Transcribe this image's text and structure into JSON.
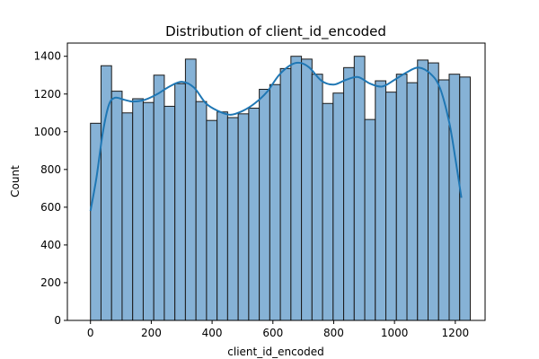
{
  "chart_data": {
    "type": "bar",
    "title": "Distribution of client_id_encoded",
    "xlabel": "client_id_encoded",
    "ylabel": "Count",
    "xlim": [
      -76,
      1298
    ],
    "ylim": [
      0,
      1470
    ],
    "xticks": [
      0,
      200,
      400,
      600,
      800,
      1000,
      1200
    ],
    "yticks": [
      0,
      200,
      400,
      600,
      800,
      1000,
      1200,
      1400
    ],
    "bin_start": 0,
    "bin_width": 34.7,
    "counts": [
      1045,
      1350,
      1215,
      1100,
      1175,
      1155,
      1300,
      1135,
      1255,
      1385,
      1160,
      1060,
      1105,
      1075,
      1095,
      1125,
      1225,
      1250,
      1335,
      1400,
      1385,
      1305,
      1150,
      1205,
      1340,
      1400,
      1065,
      1270,
      1210,
      1305,
      1260,
      1380,
      1365,
      1275,
      1305,
      1290
    ],
    "kde": {
      "x": [
        0,
        20,
        40,
        60,
        80,
        110,
        140,
        180,
        220,
        260,
        300,
        340,
        380,
        420,
        460,
        500,
        540,
        580,
        620,
        660,
        690,
        720,
        760,
        800,
        840,
        880,
        920,
        960,
        1000,
        1040,
        1080,
        1120,
        1150,
        1180,
        1200,
        1220
      ],
      "y": [
        580,
        760,
        990,
        1140,
        1180,
        1170,
        1160,
        1170,
        1200,
        1240,
        1265,
        1235,
        1150,
        1110,
        1090,
        1110,
        1150,
        1210,
        1300,
        1355,
        1365,
        1340,
        1270,
        1250,
        1275,
        1290,
        1255,
        1240,
        1275,
        1315,
        1340,
        1305,
        1230,
        1050,
        860,
        650
      ]
    }
  }
}
